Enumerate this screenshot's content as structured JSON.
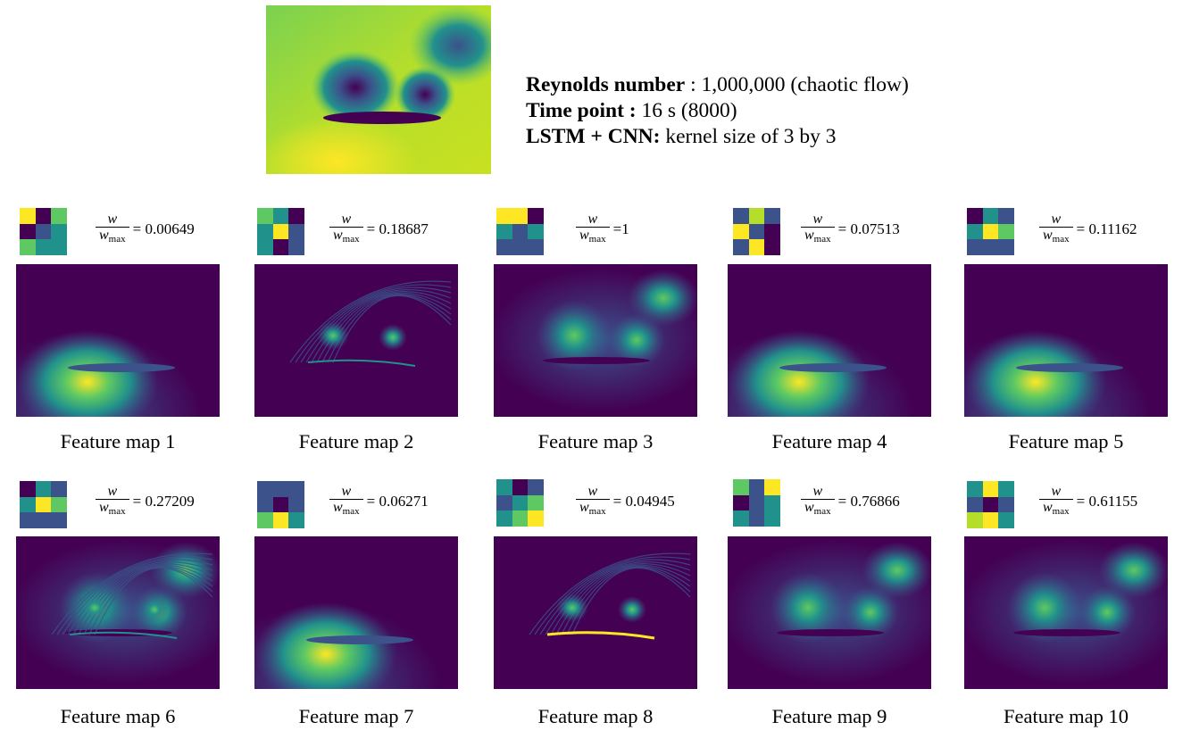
{
  "header": {
    "reynolds_label": "Reynolds number",
    "reynolds_value": " : 1,000,000 (chaotic flow)",
    "time_label": "Time point :",
    "time_value": " 16 s (8000)",
    "model_label": "LSTM + CNN:",
    "model_value": " kernel size of 3 by 3"
  },
  "formula": {
    "numerator": "w",
    "denominator_base": "w",
    "denominator_sub": "max"
  },
  "palette": {
    "dark_purple": "#440154",
    "indigo": "#3b528b",
    "teal": "#21918c",
    "green": "#5ec962",
    "yellow": "#fde725"
  },
  "feature_maps": [
    {
      "caption": "Feature map 1",
      "ratio": "= 0.00649",
      "pattern": "lower",
      "kernel": [
        "#fde725",
        "#440154",
        "#5ec962",
        "#440154",
        "#3b528b",
        "#21918c",
        "#5ec962",
        "#21918c",
        "#21918c"
      ]
    },
    {
      "caption": "Feature map 2",
      "ratio": "= 0.18687",
      "pattern": "edges",
      "kernel": [
        "#5ec962",
        "#21918c",
        "#440154",
        "#21918c",
        "#fde725",
        "#3b528b",
        "#21918c",
        "#440154",
        "#3b528b"
      ]
    },
    {
      "caption": "Feature map 3",
      "ratio": "=1",
      "pattern": "vortex",
      "kernel": [
        "#fde725",
        "#fde725",
        "#440154",
        "#21918c",
        "#3b528b",
        "#21918c",
        "#3b528b",
        "#3b528b",
        "#3b528b"
      ]
    },
    {
      "caption": "Feature map 4",
      "ratio": "= 0.07513",
      "pattern": "lower",
      "kernel": [
        "#3b528b",
        "#b5de2b",
        "#3b528b",
        "#fde725",
        "#3b528b",
        "#440154",
        "#3b528b",
        "#fde725",
        "#440154"
      ]
    },
    {
      "caption": "Feature map 5",
      "ratio": "= 0.11162",
      "pattern": "lower",
      "kernel": [
        "#440154",
        "#21918c",
        "#3b528b",
        "#21918c",
        "#fde725",
        "#5ec962",
        "#3b528b",
        "#3b528b",
        "#3b528b"
      ]
    },
    {
      "caption": "Feature map 6",
      "ratio": "= 0.27209",
      "pattern": "vortex-edges",
      "kernel": [
        "#440154",
        "#21918c",
        "#3b528b",
        "#21918c",
        "#fde725",
        "#5ec962",
        "#3b528b",
        "#3b528b",
        "#3b528b"
      ]
    },
    {
      "caption": "Feature map 7",
      "ratio": "= 0.06271",
      "pattern": "lower",
      "kernel": [
        "#3b528b",
        "#3b528b",
        "#3b528b",
        "#3b528b",
        "#440154",
        "#3b528b",
        "#5ec962",
        "#fde725",
        "#21918c"
      ]
    },
    {
      "caption": "Feature map 8",
      "ratio": "= 0.04945",
      "pattern": "edges-bright",
      "kernel": [
        "#21918c",
        "#440154",
        "#3b528b",
        "#3b528b",
        "#21918c",
        "#5ec962",
        "#21918c",
        "#5ec962",
        "#fde725"
      ]
    },
    {
      "caption": "Feature map 9",
      "ratio": "= 0.76866",
      "pattern": "vortex",
      "kernel": [
        "#5ec962",
        "#3b528b",
        "#fde725",
        "#440154",
        "#3b528b",
        "#21918c",
        "#21918c",
        "#3b528b",
        "#21918c"
      ]
    },
    {
      "caption": "Feature map 10",
      "ratio": "= 0.61155",
      "pattern": "vortex",
      "kernel": [
        "#21918c",
        "#fde725",
        "#21918c",
        "#3b528b",
        "#440154",
        "#3b528b",
        "#b5de2b",
        "#fde725",
        "#21918c"
      ]
    }
  ]
}
